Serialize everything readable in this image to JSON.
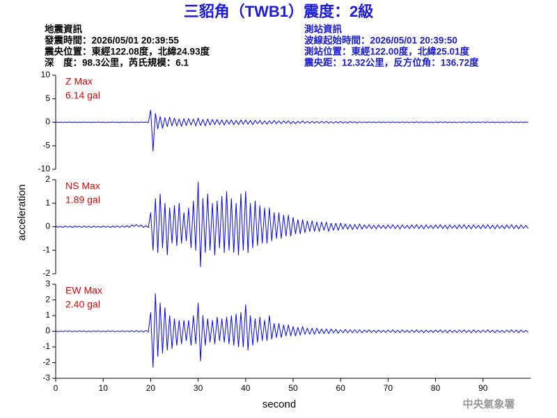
{
  "header": {
    "title": "三貂角（TWB1）震度：2級",
    "left": [
      "地震資訊",
      "發震時間：2026/05/01 20:39:55",
      "震央位置：東經122.08度，北緯24.93度",
      "深　度：98.3公里，芮氏規模：6.1"
    ],
    "right": [
      "測站資訊",
      "波線起始時間：2026/05/01 20:39:50",
      "測站位置：東經122.00度，北緯25.01度",
      "震央距：12.32公里，反方位角：136.72度"
    ]
  },
  "footer": "中央氣象署",
  "chart_data": [
    {
      "type": "line",
      "label": "Z Max",
      "max_label": "6.14 gal",
      "color": "#0000ff",
      "ylim": [
        -10,
        10
      ],
      "yticks": [
        -10,
        -5,
        0,
        5,
        10
      ],
      "xlim": [
        0,
        100
      ],
      "x": [
        0,
        0.5,
        1,
        1.5,
        2,
        2.5,
        3,
        3.5,
        4,
        4.5,
        5,
        5.5,
        6,
        6.5,
        7,
        7.5,
        8,
        8.5,
        9,
        9.5,
        10,
        10.5,
        11,
        11.5,
        12,
        12.5,
        13,
        13.5,
        14,
        14.5,
        15,
        15.5,
        16,
        16.5,
        17,
        17.5,
        18,
        18.5,
        19,
        19.5,
        20,
        20.5,
        21,
        21.5,
        22,
        22.5,
        23,
        23.5,
        24,
        24.5,
        25,
        25.5,
        26,
        26.5,
        27,
        27.5,
        28,
        28.5,
        29,
        29.5,
        30,
        30.5,
        31,
        31.5,
        32,
        32.5,
        33,
        33.5,
        34,
        34.5,
        35,
        35.5,
        36,
        36.5,
        37,
        37.5,
        38,
        38.5,
        39,
        39.5,
        40,
        40.5,
        41,
        41.5,
        42,
        42.5,
        43,
        43.5,
        44,
        44.5,
        45,
        45.5,
        46,
        46.5,
        47,
        47.5,
        48,
        48.5,
        49,
        49.5,
        50,
        50.5,
        51,
        51.5,
        52,
        52.5,
        53,
        53.5,
        54,
        54.5,
        55,
        55.5,
        56,
        56.5,
        57,
        57.5,
        58,
        58.5,
        59,
        59.5,
        60,
        60.5,
        61,
        61.5,
        62,
        62.5,
        63,
        63.5,
        64,
        64.5,
        65,
        65.5,
        66,
        66.5,
        67,
        67.5,
        68,
        68.5,
        69,
        69.5,
        70,
        70.5,
        71,
        71.5,
        72,
        72.5,
        73,
        73.5,
        74,
        74.5,
        75,
        75.5,
        76,
        76.5,
        77,
        77.5,
        78,
        78.5,
        79,
        79.5,
        80,
        80.5,
        81,
        81.5,
        82,
        82.5,
        83,
        83.5,
        84,
        84.5,
        85,
        85.5,
        86,
        86.5,
        87,
        87.5,
        88,
        88.5,
        89,
        89.5,
        90,
        90.5,
        91,
        91.5,
        92,
        92.5,
        93,
        93.5,
        94,
        94.5,
        95,
        95.5,
        96,
        96.5,
        97,
        97.5,
        98,
        98.5,
        99,
        99.5
      ],
      "values": [
        0.05,
        -0.04,
        0.03,
        -0.05,
        0.04,
        -0.03,
        0.05,
        -0.04,
        0.03,
        -0.05,
        0.04,
        -0.03,
        0.05,
        -0.04,
        0.03,
        -0.05,
        0.04,
        -0.03,
        0.05,
        -0.04,
        0.03,
        -0.05,
        0.04,
        -0.03,
        0.05,
        -0.04,
        0.03,
        -0.05,
        0.04,
        -0.03,
        0.05,
        -0.04,
        0.06,
        -0.05,
        0.04,
        -0.06,
        0.05,
        -0.04,
        0.06,
        -0.1,
        2.6,
        -6.1,
        1.9,
        -1.4,
        1.2,
        -1.3,
        1.0,
        -0.9,
        1.1,
        -0.8,
        0.9,
        -0.8,
        0.7,
        -0.9,
        0.8,
        -0.7,
        0.8,
        -0.6,
        0.7,
        -0.8,
        0.9,
        -0.7,
        0.6,
        -0.8,
        0.7,
        -0.6,
        0.6,
        -0.5,
        0.6,
        -0.5,
        0.5,
        -0.6,
        0.5,
        -0.4,
        0.5,
        -0.5,
        0.4,
        -0.5,
        0.5,
        -0.4,
        0.5,
        -0.4,
        0.4,
        -0.5,
        0.4,
        -0.3,
        0.4,
        -0.4,
        0.3,
        -0.4,
        0.3,
        -0.3,
        0.4,
        -0.3,
        0.3,
        -0.3,
        0.3,
        -0.2,
        0.3,
        -0.3,
        0.2,
        -0.3,
        0.2,
        -0.2,
        0.3,
        -0.2,
        0.2,
        -0.2,
        0.2,
        -0.2,
        0.2,
        -0.2,
        0.2,
        -0.15,
        0.2,
        -0.2,
        0.15,
        -0.2,
        0.15,
        -0.15,
        0.15,
        -0.15,
        0.1,
        -0.15,
        0.15,
        -0.1,
        0.1,
        -0.15,
        0.1,
        -0.1,
        0.08,
        -0.07,
        0.09,
        -0.08,
        0.07,
        -0.09,
        0.08,
        -0.07,
        0.06,
        -0.08,
        0.08,
        -0.07,
        0.09,
        -0.08,
        0.07,
        -0.09,
        0.08,
        -0.07,
        0.06,
        -0.08,
        0.08,
        -0.07,
        0.09,
        -0.08,
        0.07,
        -0.09,
        0.08,
        -0.07,
        0.06,
        -0.08,
        0.08,
        -0.07,
        0.09,
        -0.08,
        0.07,
        -0.09,
        0.08,
        -0.07,
        0.06,
        -0.08,
        0.08,
        -0.07,
        0.09,
        -0.08,
        0.07,
        -0.09,
        0.08,
        -0.07,
        0.06,
        -0.08,
        0.08,
        -0.07,
        0.09,
        -0.08,
        0.07,
        -0.09,
        0.08,
        -0.07,
        0.06,
        -0.08,
        0.08,
        -0.07,
        0.09,
        -0.08,
        0.07,
        -0.09,
        0.08,
        -0.07,
        0.06,
        -0.08
      ]
    },
    {
      "type": "line",
      "label": "NS Max",
      "max_label": "1.89 gal",
      "color": "#0000ff",
      "ylim": [
        -2,
        2
      ],
      "yticks": [
        -2,
        -1,
        0,
        1,
        2
      ],
      "xlim": [
        0,
        100
      ],
      "ylabel": "acceleration",
      "x": [
        0,
        0.5,
        1,
        1.5,
        2,
        2.5,
        3,
        3.5,
        4,
        4.5,
        5,
        5.5,
        6,
        6.5,
        7,
        7.5,
        8,
        8.5,
        9,
        9.5,
        10,
        10.5,
        11,
        11.5,
        12,
        12.5,
        13,
        13.5,
        14,
        14.5,
        15,
        15.5,
        16,
        16.5,
        17,
        17.5,
        18,
        18.5,
        19,
        19.5,
        20,
        20.5,
        21,
        21.5,
        22,
        22.5,
        23,
        23.5,
        24,
        24.5,
        25,
        25.5,
        26,
        26.5,
        27,
        27.5,
        28,
        28.5,
        29,
        29.5,
        30,
        30.5,
        31,
        31.5,
        32,
        32.5,
        33,
        33.5,
        34,
        34.5,
        35,
        35.5,
        36,
        36.5,
        37,
        37.5,
        38,
        38.5,
        39,
        39.5,
        40,
        40.5,
        41,
        41.5,
        42,
        42.5,
        43,
        43.5,
        44,
        44.5,
        45,
        45.5,
        46,
        46.5,
        47,
        47.5,
        48,
        48.5,
        49,
        49.5,
        50,
        50.5,
        51,
        51.5,
        52,
        52.5,
        53,
        53.5,
        54,
        54.5,
        55,
        55.5,
        56,
        56.5,
        57,
        57.5,
        58,
        58.5,
        59,
        59.5,
        60,
        60.5,
        61,
        61.5,
        62,
        62.5,
        63,
        63.5,
        64,
        64.5,
        65,
        65.5,
        66,
        66.5,
        67,
        67.5,
        68,
        68.5,
        69,
        69.5,
        70,
        70.5,
        71,
        71.5,
        72,
        72.5,
        73,
        73.5,
        74,
        74.5,
        75,
        75.5,
        76,
        76.5,
        77,
        77.5,
        78,
        78.5,
        79,
        79.5,
        80,
        80.5,
        81,
        81.5,
        82,
        82.5,
        83,
        83.5,
        84,
        84.5,
        85,
        85.5,
        86,
        86.5,
        87,
        87.5,
        88,
        88.5,
        89,
        89.5,
        90,
        90.5,
        91,
        91.5,
        92,
        92.5,
        93,
        93.5,
        94,
        94.5,
        95,
        95.5,
        96,
        96.5,
        97,
        97.5,
        98,
        98.5,
        99,
        99.5
      ],
      "values": [
        0.03,
        -0.02,
        0.02,
        -0.03,
        0.03,
        -0.02,
        0.02,
        -0.03,
        0.03,
        -0.02,
        0.02,
        -0.03,
        0.03,
        -0.02,
        0.02,
        -0.03,
        0.03,
        -0.02,
        0.02,
        -0.03,
        0.03,
        -0.02,
        0.02,
        -0.03,
        0.03,
        -0.02,
        0.04,
        -0.03,
        0.04,
        -0.02,
        0.05,
        -0.03,
        0.08,
        0.02,
        0.09,
        0.01,
        0.08,
        -0.03,
        0.05,
        -0.04,
        0.6,
        -1.0,
        1.2,
        -1.1,
        1.4,
        -0.9,
        1.0,
        -1.2,
        0.8,
        -0.7,
        0.9,
        -0.8,
        1.0,
        -0.7,
        0.6,
        -0.6,
        0.8,
        -0.9,
        1.1,
        -1.0,
        1.9,
        -1.7,
        1.2,
        -1.1,
        1.4,
        -1.0,
        1.0,
        -1.2,
        1.1,
        -0.9,
        1.3,
        -1.1,
        1.5,
        -1.0,
        1.2,
        -1.1,
        1.0,
        -1.2,
        1.4,
        -1.0,
        1.5,
        -1.1,
        1.0,
        -0.9,
        1.1,
        -0.8,
        0.9,
        -0.7,
        0.8,
        -0.7,
        0.8,
        -0.6,
        0.6,
        -0.5,
        0.6,
        -0.5,
        0.5,
        -0.4,
        0.5,
        -0.4,
        0.4,
        -0.3,
        0.3,
        -0.3,
        0.3,
        -0.25,
        0.25,
        -0.2,
        0.25,
        -0.2,
        0.2,
        -0.2,
        0.2,
        -0.15,
        0.2,
        -0.2,
        0.15,
        -0.15,
        0.15,
        -0.15,
        0.15,
        -0.1,
        0.12,
        -0.1,
        0.1,
        -0.12,
        0.1,
        -0.1,
        0.12,
        -0.1,
        0.08,
        -0.07,
        0.09,
        -0.08,
        0.07,
        -0.09,
        0.08,
        -0.07,
        0.06,
        -0.08,
        0.08,
        -0.07,
        0.09,
        -0.08,
        0.07,
        -0.09,
        0.08,
        -0.07,
        0.06,
        -0.08,
        0.08,
        -0.07,
        0.09,
        -0.08,
        0.07,
        -0.09,
        0.08,
        -0.07,
        0.06,
        -0.08,
        0.08,
        -0.07,
        0.09,
        -0.08,
        0.07,
        -0.09,
        0.08,
        -0.07,
        0.06,
        -0.08,
        0.08,
        -0.07,
        0.09,
        -0.08,
        0.07,
        -0.09,
        0.08,
        -0.07,
        0.06,
        -0.08,
        0.08,
        -0.07,
        0.09,
        -0.08,
        0.07,
        -0.09,
        0.08,
        -0.07,
        0.06,
        -0.08,
        0.08,
        -0.07,
        0.09,
        -0.08,
        0.07,
        -0.09,
        0.08,
        -0.07,
        0.06,
        -0.08
      ]
    },
    {
      "type": "line",
      "label": "EW Max",
      "max_label": "2.40 gal",
      "color": "#0000ff",
      "ylim": [
        -3,
        3
      ],
      "yticks": [
        -3,
        -2,
        -1,
        0,
        1,
        2,
        3
      ],
      "xlim": [
        0,
        100
      ],
      "xticks": [
        0,
        10,
        20,
        30,
        40,
        50,
        60,
        70,
        80,
        90
      ],
      "xlabel": "second",
      "x": [
        0,
        0.5,
        1,
        1.5,
        2,
        2.5,
        3,
        3.5,
        4,
        4.5,
        5,
        5.5,
        6,
        6.5,
        7,
        7.5,
        8,
        8.5,
        9,
        9.5,
        10,
        10.5,
        11,
        11.5,
        12,
        12.5,
        13,
        13.5,
        14,
        14.5,
        15,
        15.5,
        16,
        16.5,
        17,
        17.5,
        18,
        18.5,
        19,
        19.5,
        20,
        20.5,
        21,
        21.5,
        22,
        22.5,
        23,
        23.5,
        24,
        24.5,
        25,
        25.5,
        26,
        26.5,
        27,
        27.5,
        28,
        28.5,
        29,
        29.5,
        30,
        30.5,
        31,
        31.5,
        32,
        32.5,
        33,
        33.5,
        34,
        34.5,
        35,
        35.5,
        36,
        36.5,
        37,
        37.5,
        38,
        38.5,
        39,
        39.5,
        40,
        40.5,
        41,
        41.5,
        42,
        42.5,
        43,
        43.5,
        44,
        44.5,
        45,
        45.5,
        46,
        46.5,
        47,
        47.5,
        48,
        48.5,
        49,
        49.5,
        50,
        50.5,
        51,
        51.5,
        52,
        52.5,
        53,
        53.5,
        54,
        54.5,
        55,
        55.5,
        56,
        56.5,
        57,
        57.5,
        58,
        58.5,
        59,
        59.5,
        60,
        60.5,
        61,
        61.5,
        62,
        62.5,
        63,
        63.5,
        64,
        64.5,
        65,
        65.5,
        66,
        66.5,
        67,
        67.5,
        68,
        68.5,
        69,
        69.5,
        70,
        70.5,
        71,
        71.5,
        72,
        72.5,
        73,
        73.5,
        74,
        74.5,
        75,
        75.5,
        76,
        76.5,
        77,
        77.5,
        78,
        78.5,
        79,
        79.5,
        80,
        80.5,
        81,
        81.5,
        82,
        82.5,
        83,
        83.5,
        84,
        84.5,
        85,
        85.5,
        86,
        86.5,
        87,
        87.5,
        88,
        88.5,
        89,
        89.5,
        90,
        90.5,
        91,
        91.5,
        92,
        92.5,
        93,
        93.5,
        94,
        94.5,
        95,
        95.5,
        96,
        96.5,
        97,
        97.5,
        98,
        98.5,
        99,
        99.5
      ],
      "values": [
        0.03,
        -0.03,
        0.02,
        -0.03,
        0.03,
        -0.02,
        0.03,
        -0.03,
        0.02,
        -0.03,
        0.03,
        -0.02,
        0.03,
        -0.03,
        0.02,
        -0.03,
        0.03,
        -0.02,
        0.03,
        -0.03,
        0.02,
        -0.03,
        0.03,
        -0.02,
        0.03,
        -0.03,
        0.02,
        -0.03,
        0.03,
        -0.02,
        0.03,
        -0.03,
        0.04,
        -0.03,
        0.04,
        -0.04,
        0.03,
        -0.04,
        0.05,
        -0.05,
        1.2,
        -2.3,
        2.4,
        -1.6,
        1.8,
        -1.4,
        1.5,
        -1.2,
        1.0,
        -1.1,
        0.8,
        -0.9,
        0.7,
        -0.8,
        0.7,
        -0.6,
        0.7,
        -0.9,
        1.0,
        -0.8,
        1.8,
        -1.9,
        1.0,
        -0.9,
        0.8,
        -0.7,
        0.7,
        -0.8,
        0.9,
        -0.6,
        0.8,
        -0.7,
        0.9,
        -0.8,
        1.0,
        -0.9,
        1.1,
        -1.0,
        1.2,
        -1.0,
        1.7,
        -1.2,
        1.0,
        -0.9,
        0.8,
        -0.7,
        0.9,
        -0.6,
        0.7,
        -0.6,
        1.0,
        -0.5,
        0.5,
        -0.4,
        0.5,
        -0.4,
        0.4,
        -0.3,
        0.4,
        -0.3,
        0.3,
        -0.3,
        0.25,
        -0.25,
        0.3,
        -0.2,
        0.2,
        -0.2,
        0.2,
        -0.2,
        0.2,
        -0.15,
        0.15,
        -0.15,
        0.15,
        -0.15,
        0.15,
        -0.1,
        0.12,
        -0.12,
        0.1,
        -0.1,
        0.12,
        -0.1,
        0.1,
        -0.1,
        0.1,
        -0.1,
        0.1,
        -0.1,
        0.08,
        -0.07,
        0.09,
        -0.08,
        0.07,
        -0.09,
        0.08,
        -0.07,
        0.06,
        -0.08,
        0.08,
        -0.07,
        0.09,
        -0.08,
        0.07,
        -0.09,
        0.08,
        -0.07,
        0.06,
        -0.08,
        0.08,
        -0.07,
        0.09,
        -0.08,
        0.07,
        -0.09,
        0.08,
        -0.07,
        0.06,
        -0.08,
        0.08,
        -0.07,
        0.09,
        -0.08,
        0.07,
        -0.09,
        0.08,
        -0.07,
        0.06,
        -0.08,
        0.08,
        -0.07,
        0.09,
        -0.08,
        0.07,
        -0.09,
        0.08,
        -0.07,
        0.06,
        -0.08,
        0.08,
        -0.07,
        0.09,
        -0.08,
        0.07,
        -0.09,
        0.08,
        -0.07,
        0.06,
        -0.08,
        0.08,
        -0.07,
        0.09,
        -0.08,
        0.07,
        -0.09,
        0.08,
        -0.07,
        0.06,
        -0.08
      ]
    }
  ]
}
